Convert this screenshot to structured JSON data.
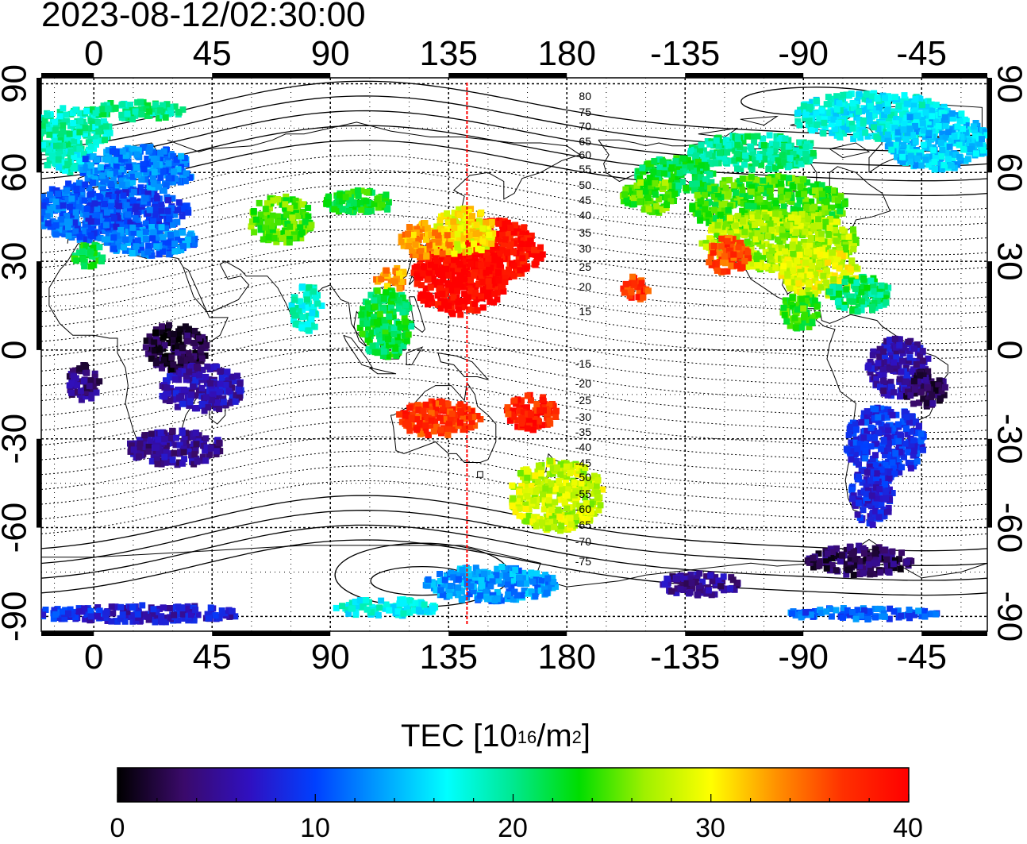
{
  "timestamp": "2023-08-12/02:30:00",
  "map": {
    "top_lon_ticks": [
      "0",
      "45",
      "90",
      "135",
      "180",
      "-135",
      "-90",
      "-45"
    ],
    "bottom_lon_ticks": [
      "0",
      "45",
      "90",
      "135",
      "180",
      "-135",
      "-90",
      "-45"
    ],
    "left_lat_ticks": [
      "90",
      "60",
      "30",
      "0",
      "-30",
      "-60",
      "-90"
    ],
    "right_lat_ticks": [
      "90",
      "60",
      "30",
      "0",
      "-30",
      "-60",
      "-90"
    ],
    "lon_range": [
      -20,
      340
    ],
    "lat_range": [
      -95,
      92
    ],
    "marker_lon": 142,
    "marker_color": "#ff0000",
    "north_contours": [
      "80",
      "75",
      "70",
      "65",
      "60",
      "55",
      "50",
      "45",
      "40",
      "35",
      "30",
      "25",
      "20",
      "15"
    ],
    "south_contours": [
      "-15",
      "-20",
      "-25",
      "-30",
      "-35",
      "-40",
      "-45",
      "-50",
      "-55",
      "-60",
      "-65",
      "-70",
      "-75"
    ]
  },
  "colorbar": {
    "title_main": "TEC  [10",
    "title_exp1": "16",
    "title_mid": "/m",
    "title_exp2": "2",
    "title_end": "]",
    "min": 0,
    "max": 40,
    "ticks": [
      "0",
      "10",
      "20",
      "30",
      "40"
    ],
    "colors": [
      "#000000",
      "#3a0a6a",
      "#3010c0",
      "#0040ff",
      "#00a0ff",
      "#00ffff",
      "#00e890",
      "#00dd00",
      "#a0f000",
      "#ffff00",
      "#ff9000",
      "#ff3000",
      "#ff0000"
    ]
  },
  "tec_regions": [
    {
      "region": "Greenland / Iceland",
      "value": 19
    },
    {
      "region": "North Atlantic",
      "value": 12
    },
    {
      "region": "Europe",
      "value": 10
    },
    {
      "region": "Central Asia",
      "value": 25
    },
    {
      "region": "Japan / East Asia",
      "value": 38
    },
    {
      "region": "China coast",
      "value": 32
    },
    {
      "region": "Southeast Asia",
      "value": 24
    },
    {
      "region": "Central Africa",
      "value": 2
    },
    {
      "region": "Southern Africa",
      "value": 6
    },
    {
      "region": "Northern Australia",
      "value": 37
    },
    {
      "region": "New Zealand",
      "value": 28
    },
    {
      "region": "Hawaii",
      "value": 38
    },
    {
      "region": "Northern Canada",
      "value": 20
    },
    {
      "region": "United States",
      "value": 24
    },
    {
      "region": "Pacific US coast",
      "value": 36
    },
    {
      "region": "Gulf of Mexico",
      "value": 30
    },
    {
      "region": "Caribbean",
      "value": 20
    },
    {
      "region": "South America north",
      "value": 6
    },
    {
      "region": "South America south",
      "value": 9
    },
    {
      "region": "Antarctic Peninsula",
      "value": 4
    },
    {
      "region": "Antarctica east",
      "value": 14
    },
    {
      "region": "Antarctica west",
      "value": 8
    }
  ]
}
